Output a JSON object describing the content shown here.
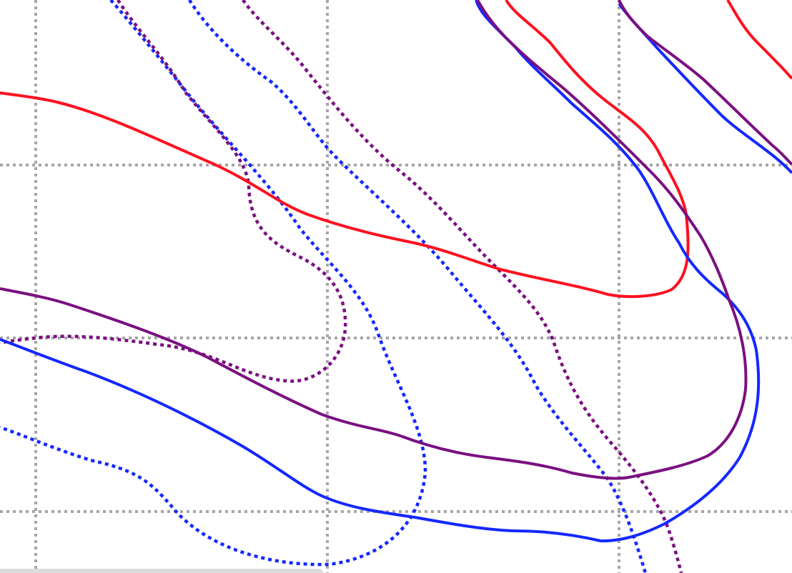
{
  "map": {
    "background": "#ffffff",
    "grid_color": "#a6a6a6",
    "colors": {
      "red": "#ff1020",
      "blue": "#1428ff",
      "purple": "#7a1080"
    }
  }
}
